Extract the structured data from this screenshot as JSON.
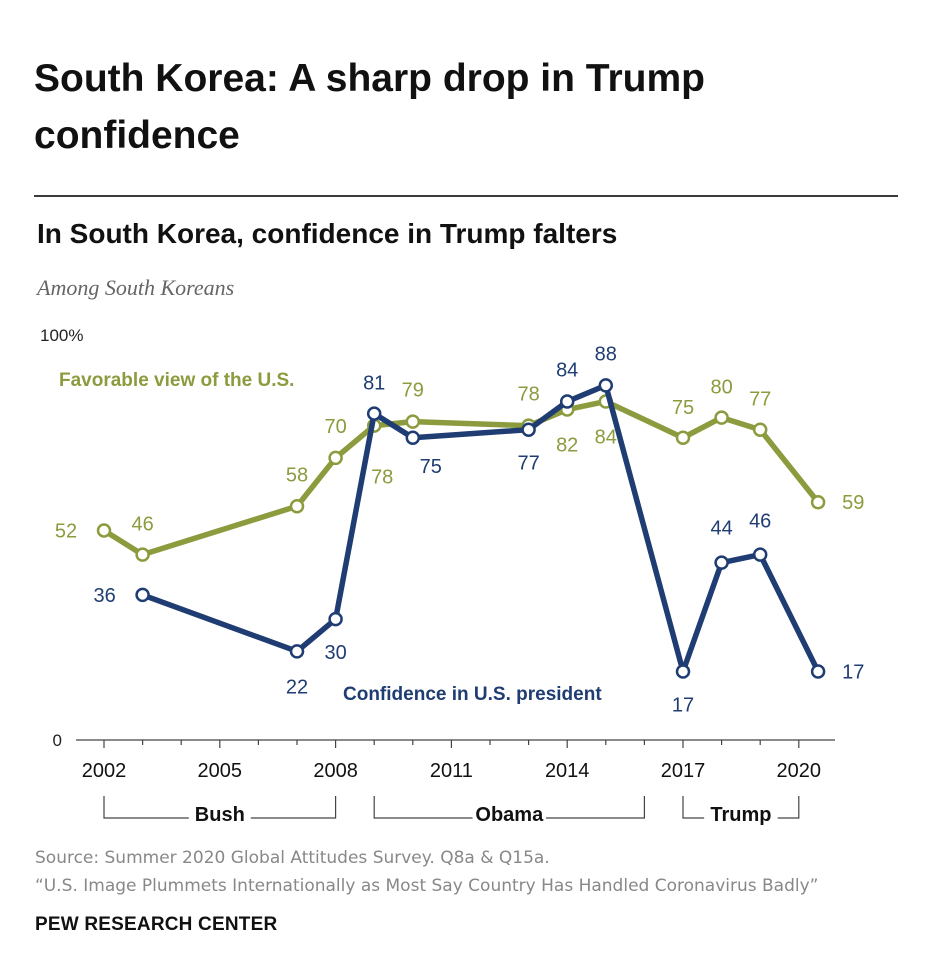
{
  "page": {
    "headline": "South Korea: A sharp drop in Trump confidence",
    "chart_title": "In South Korea, confidence in Trump falters",
    "subtitle": "Among South Koreans",
    "source_line1": "Source: Summer 2020 Global Attitudes Survey. Q8a & Q15a.",
    "source_line2": "“U.S. Image Plummets Internationally as Most Say Country Has Handled Coronavirus Badly”",
    "brand": "PEW RESEARCH CENTER"
  },
  "chart_data": {
    "type": "line",
    "y_top_label": "100%",
    "y_bottom_label": "0",
    "ylim": [
      0,
      100
    ],
    "xlim": [
      2002,
      2020.5
    ],
    "x_ticks": [
      2002,
      2005,
      2008,
      2011,
      2014,
      2017,
      2020
    ],
    "grid": false,
    "colors": {
      "favorable": "#8c9b3e",
      "confidence": "#1f3d73"
    },
    "series": [
      {
        "key": "favorable",
        "name": "Favorable view of the U.S.",
        "points": [
          {
            "x": 2002,
            "y": 52
          },
          {
            "x": 2003,
            "y": 46
          },
          {
            "x": 2007,
            "y": 58
          },
          {
            "x": 2008,
            "y": 70
          },
          {
            "x": 2009,
            "y": 78
          },
          {
            "x": 2010,
            "y": 79
          },
          {
            "x": 2013,
            "y": 78
          },
          {
            "x": 2014,
            "y": 82
          },
          {
            "x": 2015,
            "y": 84
          },
          {
            "x": 2017,
            "y": 75
          },
          {
            "x": 2018,
            "y": 80
          },
          {
            "x": 2019,
            "y": 77
          },
          {
            "x": 2020.5,
            "y": 59
          }
        ]
      },
      {
        "key": "confidence",
        "name": "Confidence in U.S. president",
        "points": [
          {
            "x": 2003,
            "y": 36
          },
          {
            "x": 2007,
            "y": 22
          },
          {
            "x": 2008,
            "y": 30
          },
          {
            "x": 2009,
            "y": 81
          },
          {
            "x": 2010,
            "y": 75
          },
          {
            "x": 2013,
            "y": 77
          },
          {
            "x": 2014,
            "y": 84
          },
          {
            "x": 2015,
            "y": 88
          },
          {
            "x": 2017,
            "y": 17
          },
          {
            "x": 2018,
            "y": 44
          },
          {
            "x": 2019,
            "y": 46
          },
          {
            "x": 2020.5,
            "y": 17
          }
        ]
      }
    ],
    "presidents": [
      {
        "name": "Bush",
        "from": 2002,
        "to": 2008
      },
      {
        "name": "Obama",
        "from": 2009,
        "to": 2016
      },
      {
        "name": "Trump",
        "from": 2017,
        "to": 2020
      }
    ]
  }
}
